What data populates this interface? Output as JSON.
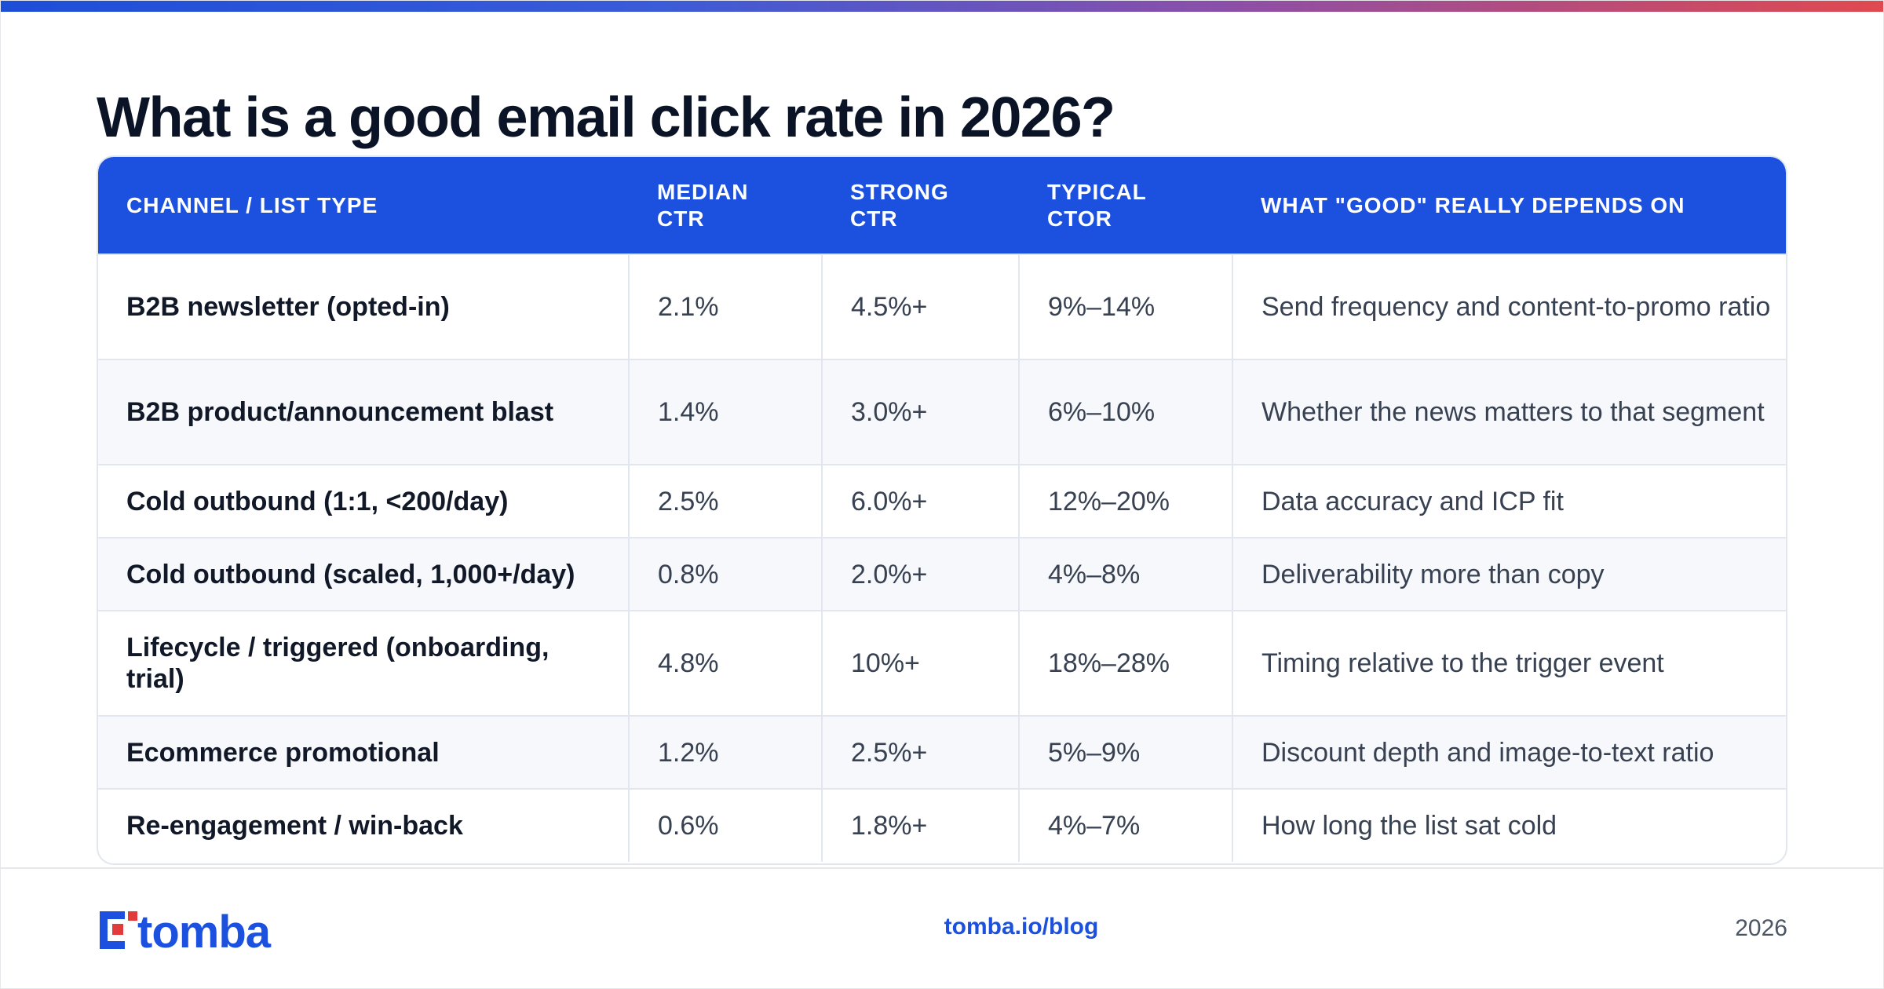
{
  "title": "What is a good email click rate in 2026?",
  "table": {
    "headers": [
      "CHANNEL / LIST TYPE",
      "MEDIAN\nCTR",
      "STRONG\nCTR",
      "TYPICAL\nCTOR",
      "WHAT \"GOOD\" REALLY DEPENDS ON"
    ],
    "rows": [
      [
        "B2B newsletter (opted-in)",
        "2.1%",
        "4.5%+",
        "9%–14%",
        "Send frequency and content-to-promo ratio"
      ],
      [
        "B2B product/announcement blast",
        "1.4%",
        "3.0%+",
        "6%–10%",
        "Whether the news matters to that segment"
      ],
      [
        "Cold outbound (1:1, <200/day)",
        "2.5%",
        "6.0%+",
        "12%–20%",
        "Data accuracy and ICP fit"
      ],
      [
        "Cold outbound (scaled, 1,000+/day)",
        "0.8%",
        "2.0%+",
        "4%–8%",
        "Deliverability more than copy"
      ],
      [
        "Lifecycle / triggered (onboarding, trial)",
        "4.8%",
        "10%+",
        "18%–28%",
        "Timing relative to the trigger event"
      ],
      [
        "Ecommerce promotional",
        "1.2%",
        "2.5%+",
        "5%–9%",
        "Discount depth and image-to-text ratio"
      ],
      [
        "Re-engagement / win-back",
        "0.6%",
        "1.8%+",
        "4%–7%",
        "How long the list sat cold"
      ]
    ]
  },
  "footer": {
    "logo_text": "tomba",
    "link": "tomba.io/blog",
    "year": "2026"
  },
  "colors": {
    "header_bg": "#1b51de",
    "title": "#0b1426",
    "logo_red": "#e23b3b",
    "logo_blue": "#1b51de"
  }
}
